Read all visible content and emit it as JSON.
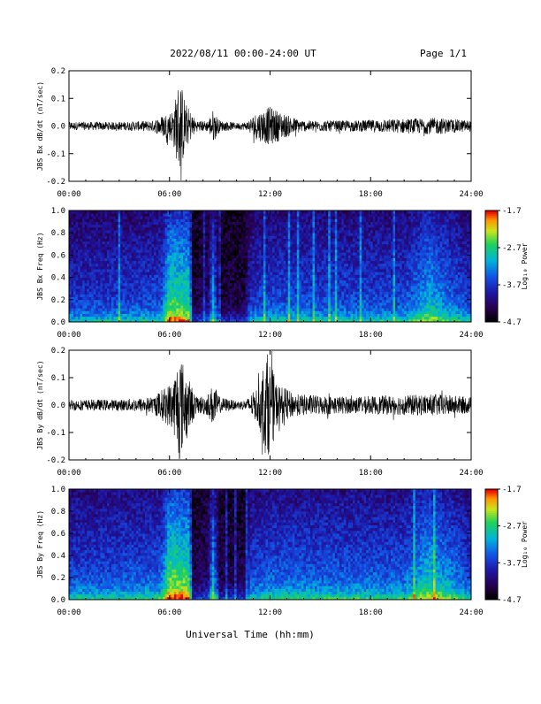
{
  "header": {
    "date_range": "2022/08/11  00:00-24:00 UT",
    "page": "Page 1/1"
  },
  "footer": {
    "xlabel": "Universal Time (hh:mm)"
  },
  "chart_data": [
    {
      "type": "line",
      "ylabel": "JBS Bx dB/dt (nT/sec)",
      "x_ticks": [
        "00:00",
        "06:00",
        "12:00",
        "18:00",
        "24:00"
      ],
      "y_ticks": [
        "-0.2",
        "-0.1",
        "0.0",
        "0.1",
        "0.2"
      ],
      "xlim": [
        0,
        24
      ],
      "ylim": [
        -0.2,
        0.2
      ],
      "series_color": "#000000",
      "activity_envelope": [
        {
          "t": 0,
          "amp": 0.015
        },
        {
          "t": 3,
          "amp": 0.015
        },
        {
          "t": 5,
          "amp": 0.02
        },
        {
          "t": 6.2,
          "amp": 0.06
        },
        {
          "t": 6.6,
          "amp": 0.18
        },
        {
          "t": 7.0,
          "amp": 0.08
        },
        {
          "t": 7.6,
          "amp": 0.02
        },
        {
          "t": 8.3,
          "amp": 0.02
        },
        {
          "t": 8.6,
          "amp": 0.06
        },
        {
          "t": 9.0,
          "amp": 0.02
        },
        {
          "t": 10.0,
          "amp": 0.012
        },
        {
          "t": 10.6,
          "amp": 0.015
        },
        {
          "t": 11.2,
          "amp": 0.05
        },
        {
          "t": 12.0,
          "amp": 0.07
        },
        {
          "t": 13.0,
          "amp": 0.04
        },
        {
          "t": 14.0,
          "amp": 0.02
        },
        {
          "t": 17.0,
          "amp": 0.02
        },
        {
          "t": 19.0,
          "amp": 0.025
        },
        {
          "t": 22.0,
          "amp": 0.03
        },
        {
          "t": 24,
          "amp": 0.02
        }
      ]
    },
    {
      "type": "heatmap",
      "ylabel": "JBS Bx Freq (Hz)",
      "x_ticks": [
        "00:00",
        "06:00",
        "12:00",
        "18:00",
        "24:00"
      ],
      "y_ticks": [
        "0.0",
        "0.2",
        "0.4",
        "0.6",
        "0.8",
        "1.0"
      ],
      "xlim": [
        0,
        24
      ],
      "ylim": [
        0,
        1.0
      ],
      "colorbar": {
        "label": "Log₁₀ Power",
        "ticks": [
          "-1.7",
          "-2.7",
          "-3.7",
          "-4.7"
        ],
        "range": [
          -4.7,
          -1.7
        ]
      },
      "activity_profile": [
        {
          "t": 0,
          "level": 0.35
        },
        {
          "t": 5.5,
          "level": 0.4
        },
        {
          "t": 6.0,
          "level": 0.75
        },
        {
          "t": 7.2,
          "level": 0.7
        },
        {
          "t": 7.4,
          "level": 0.1
        },
        {
          "t": 8.3,
          "level": 0.15
        },
        {
          "t": 8.6,
          "level": 0.55
        },
        {
          "t": 9.0,
          "level": 0.1
        },
        {
          "t": 10.5,
          "level": 0.1
        },
        {
          "t": 10.8,
          "level": 0.35
        },
        {
          "t": 12.0,
          "level": 0.4
        },
        {
          "t": 20.0,
          "level": 0.4
        },
        {
          "t": 21.5,
          "level": 0.6
        },
        {
          "t": 23.0,
          "level": 0.45
        },
        {
          "t": 24,
          "level": 0.35
        }
      ]
    },
    {
      "type": "line",
      "ylabel": "JBS By dB/dt (nT/sec)",
      "x_ticks": [
        "00:00",
        "06:00",
        "12:00",
        "18:00",
        "24:00"
      ],
      "y_ticks": [
        "-0.2",
        "-0.1",
        "0.0",
        "0.1",
        "0.2"
      ],
      "xlim": [
        0,
        24
      ],
      "ylim": [
        -0.2,
        0.2
      ],
      "series_color": "#000000",
      "activity_envelope": [
        {
          "t": 0,
          "amp": 0.02
        },
        {
          "t": 3,
          "amp": 0.02
        },
        {
          "t": 5,
          "amp": 0.03
        },
        {
          "t": 6.2,
          "amp": 0.09
        },
        {
          "t": 6.6,
          "amp": 0.2
        },
        {
          "t": 7.0,
          "amp": 0.12
        },
        {
          "t": 7.6,
          "amp": 0.03
        },
        {
          "t": 8.3,
          "amp": 0.04
        },
        {
          "t": 8.6,
          "amp": 0.08
        },
        {
          "t": 9.0,
          "amp": 0.03
        },
        {
          "t": 10.0,
          "amp": 0.015
        },
        {
          "t": 10.6,
          "amp": 0.02
        },
        {
          "t": 11.3,
          "amp": 0.07
        },
        {
          "t": 11.8,
          "amp": 0.2
        },
        {
          "t": 12.4,
          "amp": 0.08
        },
        {
          "t": 13.5,
          "amp": 0.04
        },
        {
          "t": 17.0,
          "amp": 0.03
        },
        {
          "t": 19.0,
          "amp": 0.035
        },
        {
          "t": 22.0,
          "amp": 0.04
        },
        {
          "t": 24,
          "amp": 0.03
        }
      ]
    },
    {
      "type": "heatmap",
      "ylabel": "JBS By Freq (Hz)",
      "x_ticks": [
        "00:00",
        "06:00",
        "12:00",
        "18:00",
        "24:00"
      ],
      "y_ticks": [
        "0.0",
        "0.2",
        "0.4",
        "0.6",
        "0.8",
        "1.0"
      ],
      "xlim": [
        0,
        24
      ],
      "ylim": [
        0,
        1.0
      ],
      "colorbar": {
        "label": "Log₁₀ Power",
        "ticks": [
          "-1.7",
          "-2.7",
          "-3.7",
          "-4.7"
        ],
        "range": [
          -4.7,
          -1.7
        ]
      },
      "activity_profile": [
        {
          "t": 0,
          "level": 0.4
        },
        {
          "t": 5.5,
          "level": 0.45
        },
        {
          "t": 6.0,
          "level": 0.8
        },
        {
          "t": 7.2,
          "level": 0.75
        },
        {
          "t": 7.4,
          "level": 0.12
        },
        {
          "t": 8.3,
          "level": 0.18
        },
        {
          "t": 8.6,
          "level": 0.6
        },
        {
          "t": 9.0,
          "level": 0.12
        },
        {
          "t": 10.5,
          "level": 0.12
        },
        {
          "t": 10.8,
          "level": 0.4
        },
        {
          "t": 12.0,
          "level": 0.45
        },
        {
          "t": 20.0,
          "level": 0.45
        },
        {
          "t": 21.5,
          "level": 0.65
        },
        {
          "t": 23.0,
          "level": 0.5
        },
        {
          "t": 24,
          "level": 0.4
        }
      ]
    }
  ]
}
